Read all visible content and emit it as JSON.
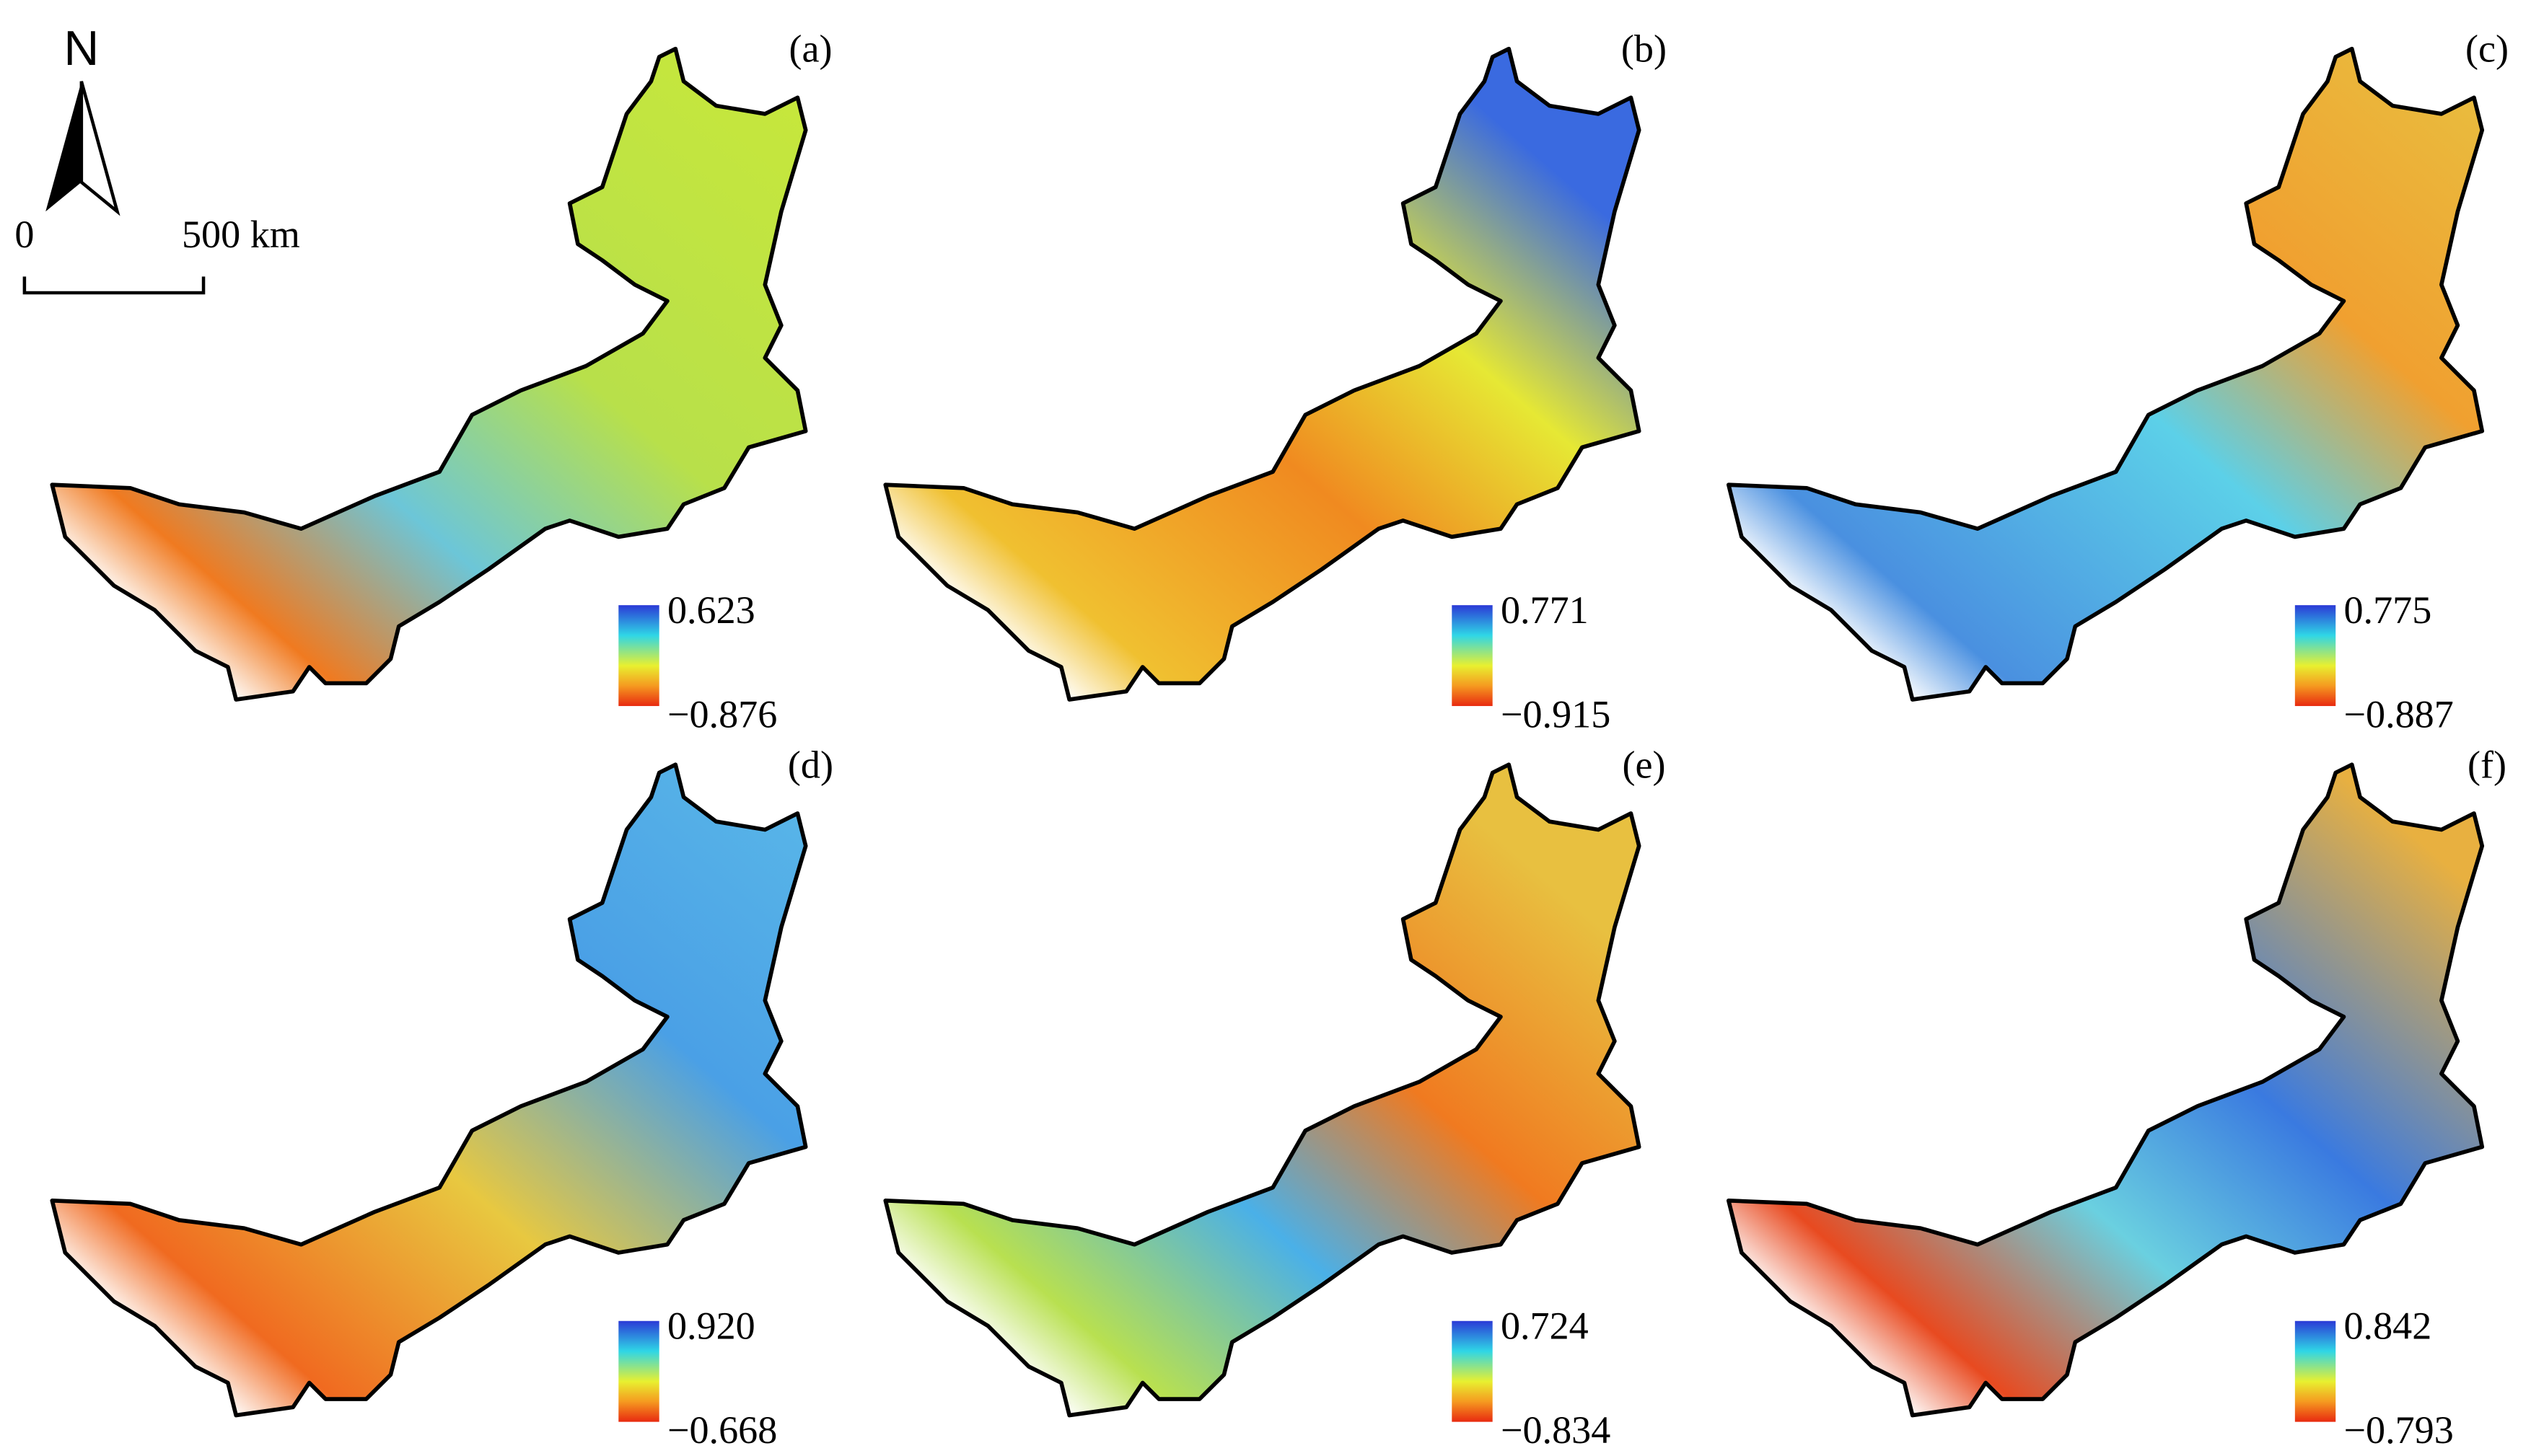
{
  "north": "N",
  "scale": {
    "start": "0",
    "end": "500 km"
  },
  "panels": [
    {
      "label": "(a)",
      "max": "0.623",
      "min": "−0.876"
    },
    {
      "label": "(b)",
      "max": "0.771",
      "min": "−0.915"
    },
    {
      "label": "(c)",
      "max": "0.775",
      "min": "−0.887"
    },
    {
      "label": "(d)",
      "max": "0.920",
      "min": "−0.668"
    },
    {
      "label": "(e)",
      "max": "0.724",
      "min": "−0.834"
    },
    {
      "label": "(f)",
      "max": "0.842",
      "min": "−0.793"
    }
  ]
}
